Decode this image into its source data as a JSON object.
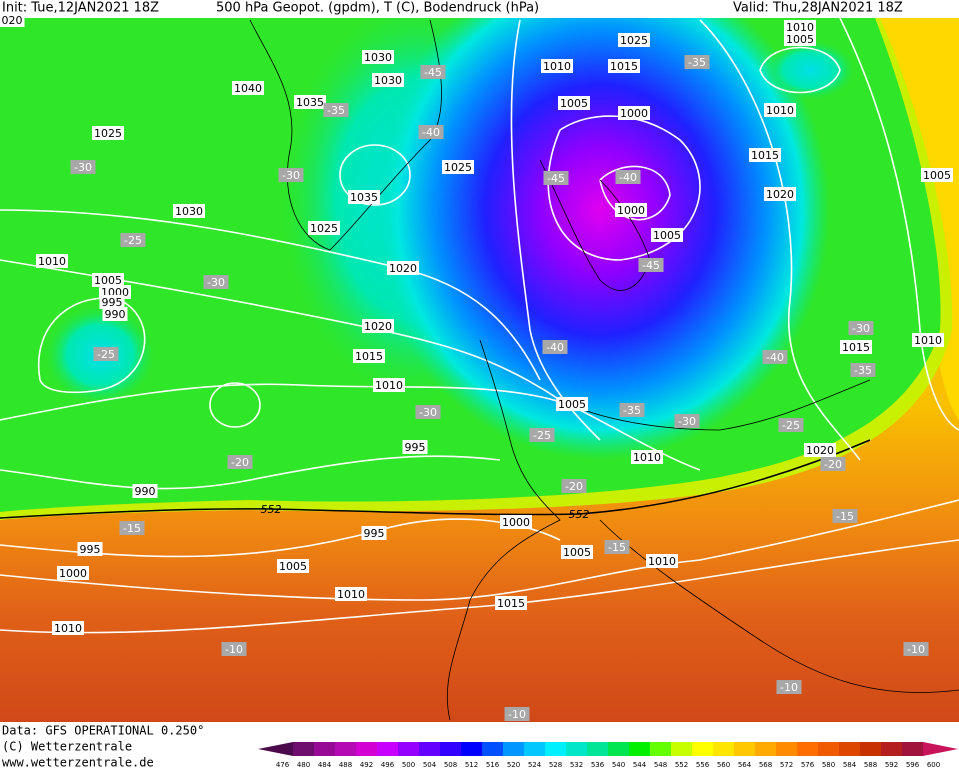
{
  "header": {
    "init": "Init: Tue,12JAN2021 18Z",
    "title": "500 hPa Geopot. (gpdm), T (C), Bodendruck (hPa)",
    "valid": "Valid: Thu,28JAN2021 18Z"
  },
  "footer": {
    "data_source": "Data: GFS OPERATIONAL 0.250°",
    "copyright": "(C) Wetterzentrale",
    "website": "www.wetterzentrale.de"
  },
  "map": {
    "pressure_labels": [
      "1030",
      "1030",
      "1040",
      "1035",
      "1025",
      "1035",
      "1030",
      "1025",
      "1010",
      "1005",
      "1000",
      "995",
      "990",
      "1020",
      "1020",
      "1015",
      "1010",
      "995",
      "990",
      "995",
      "1000",
      "1005",
      "1010",
      "1010",
      "995",
      "1000",
      "1005",
      "1010",
      "1015",
      "1005",
      "1010",
      "1020",
      "1015",
      "1010",
      "1005",
      "1020",
      "1015",
      "1010",
      "1000",
      "1005",
      "1010",
      "1015",
      "1025",
      "1010",
      "1005",
      "1000",
      "1005",
      "1025",
      "020"
    ],
    "temperature_labels": [
      "-45",
      "-35",
      "-40",
      "-30",
      "-30",
      "-25",
      "-30",
      "-25",
      "-45",
      "-40",
      "-45",
      "-40",
      "-30",
      "-25",
      "-20",
      "-20",
      "-15",
      "-15",
      "-35",
      "-30",
      "-40",
      "-35",
      "-30",
      "-25",
      "-20",
      "-15",
      "-35",
      "-10",
      "-10",
      "-10",
      "-10"
    ],
    "height_labels": [
      "552",
      "552"
    ]
  },
  "colorbar": {
    "labels": [
      "476",
      "480",
      "484",
      "488",
      "492",
      "496",
      "500",
      "504",
      "508",
      "512",
      "516",
      "520",
      "524",
      "528",
      "532",
      "536",
      "540",
      "544",
      "548",
      "552",
      "556",
      "560",
      "564",
      "568",
      "572",
      "576",
      "580",
      "584",
      "588",
      "592",
      "596",
      "600"
    ],
    "colors": [
      "#4b0a4b",
      "#6e0f6e",
      "#960a96",
      "#b40ab4",
      "#d200d2",
      "#c800ff",
      "#9600ff",
      "#6400ff",
      "#3200ff",
      "#0000ff",
      "#0050ff",
      "#0096ff",
      "#00c8ff",
      "#00f0ff",
      "#00e6c8",
      "#00e696",
      "#00e650",
      "#00f000",
      "#64ff00",
      "#c8ff00",
      "#ffff00",
      "#ffe600",
      "#ffc800",
      "#ffaa00",
      "#ff8c00",
      "#ff6e00",
      "#f05a00",
      "#dc4600",
      "#c83200",
      "#b41e1e",
      "#a0143c",
      "#c8145a"
    ]
  }
}
